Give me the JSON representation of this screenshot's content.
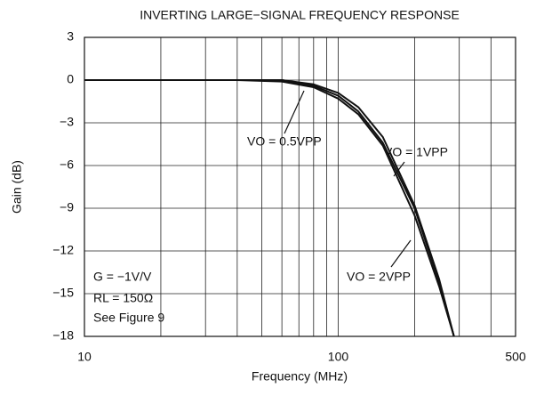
{
  "chart_data": {
    "type": "line",
    "title": "INVERTING LARGE−SIGNAL FREQUENCY RESPONSE",
    "x_label": "Frequency (MHz)",
    "y_label": "Gain (dB)",
    "x_log": true,
    "grid": true,
    "xlim": [
      10,
      500
    ],
    "xticks": [
      10,
      100,
      500
    ],
    "xminorticks": [
      20,
      30,
      40,
      50,
      60,
      70,
      80,
      90,
      200,
      300,
      400
    ],
    "ylim": [
      -18,
      3
    ],
    "yticks": [
      {
        "value": -18,
        "label": "−18"
      },
      {
        "value": -15,
        "label": "−15"
      },
      {
        "value": -12,
        "label": "−12"
      },
      {
        "value": -9,
        "label": "−9"
      },
      {
        "value": -6,
        "label": "−6"
      },
      {
        "value": -3,
        "label": "−3"
      },
      0,
      3
    ],
    "x": [
      10,
      20,
      40,
      60,
      80,
      100,
      120,
      150,
      200,
      250,
      286
    ],
    "series": [
      {
        "name": "VO = 0.5VPP",
        "color": "#111111",
        "values": [
          0,
          0,
          0,
          -0.1,
          -0.5,
          -1.3,
          -2.4,
          -4.6,
          -9.5,
          -14.5,
          -18
        ]
      },
      {
        "name": "VO = 1VPP",
        "color": "#111111",
        "values": [
          0,
          0,
          0,
          0,
          -0.3,
          -0.9,
          -1.9,
          -4.0,
          -8.8,
          -14.0,
          -18
        ]
      },
      {
        "name": "VO = 2VPP",
        "color": "#111111",
        "values": [
          0,
          0,
          0,
          0,
          -0.4,
          -1.1,
          -2.2,
          -4.4,
          -9.0,
          -14.2,
          -18
        ]
      }
    ],
    "annotations": [
      "G = −1V/V",
      "RL = 150Ω",
      "See Figure 9"
    ]
  }
}
